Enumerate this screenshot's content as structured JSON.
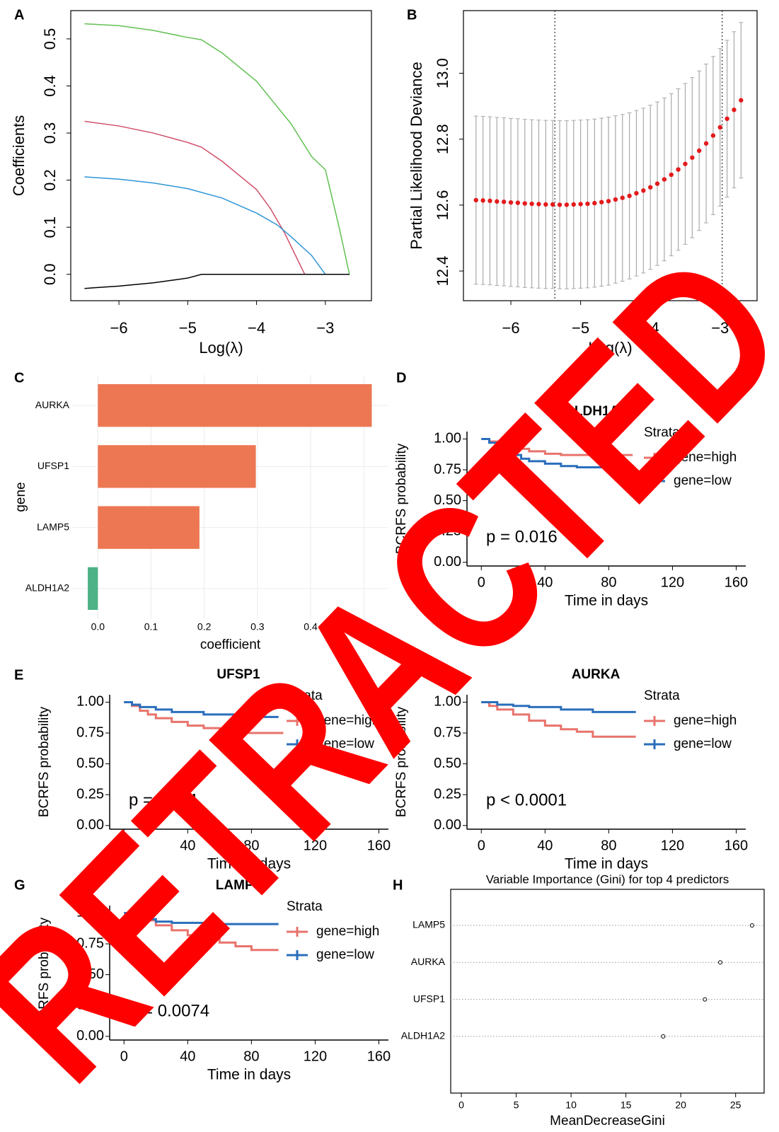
{
  "watermark": "RETRACTED",
  "chart_data": [
    {
      "type": "line",
      "panel": "A",
      "xlabel": "Log(λ)",
      "ylabel": "Coefficients",
      "xlim": [
        -6.7,
        -2.33
      ],
      "ylim": [
        -0.056,
        0.56
      ],
      "xticks": [
        {
          "value": -6,
          "label": "−6"
        },
        {
          "value": -5,
          "label": "−5"
        },
        {
          "value": -4,
          "label": "−4"
        },
        {
          "value": -3,
          "label": "−3"
        }
      ],
      "yticks": [
        {
          "value": 0,
          "label": "0.0"
        },
        0.1,
        0.2,
        0.3,
        0.4,
        0.5
      ],
      "series": [
        {
          "color": "#61c152",
          "x": [
            -6.5,
            -6,
            -5.5,
            -5,
            -4.8,
            -4.5,
            -4,
            -3.5,
            -3.2,
            -3,
            -2.8,
            -2.65
          ],
          "values": [
            0.532,
            0.528,
            0.518,
            0.503,
            0.498,
            0.47,
            0.41,
            0.32,
            0.25,
            0.222,
            0.1,
            0
          ]
        },
        {
          "color": "#d0506a",
          "x": [
            -6.5,
            -6,
            -5.5,
            -5,
            -4.8,
            -4.5,
            -4,
            -3.8,
            -3.6,
            -3.4,
            -3.3,
            -2.65
          ],
          "values": [
            0.325,
            0.315,
            0.3,
            0.28,
            0.27,
            0.24,
            0.18,
            0.14,
            0.09,
            0.03,
            0,
            0
          ]
        },
        {
          "color": "#2d96d6",
          "x": [
            -6.5,
            -6,
            -5.5,
            -5,
            -4.5,
            -4,
            -3.7,
            -3.5,
            -3.2,
            -3,
            -2.65
          ],
          "values": [
            0.207,
            0.202,
            0.194,
            0.182,
            0.162,
            0.13,
            0.105,
            0.08,
            0.04,
            0,
            0
          ]
        },
        {
          "color": "#000000",
          "x": [
            -6.5,
            -6,
            -5.5,
            -5,
            -4.8,
            -2.65
          ],
          "values": [
            -0.03,
            -0.025,
            -0.018,
            -0.008,
            0,
            0
          ]
        }
      ]
    },
    {
      "type": "errorbar",
      "panel": "B",
      "xlabel": "Log(λ)",
      "ylabel": "Partial Likelihood Deviance",
      "xlim": [
        -6.68,
        -2.47
      ],
      "ylim": [
        12.31,
        13.19
      ],
      "xticks": [
        {
          "value": -6,
          "label": "−6"
        },
        {
          "value": -5,
          "label": "−5"
        },
        {
          "value": -4,
          "label": "−4"
        },
        {
          "value": -3,
          "label": "−3"
        }
      ],
      "yticks": [
        12.4,
        12.6,
        12.8,
        {
          "value": 13,
          "label": "13.0"
        }
      ],
      "vlines": [
        -5.37,
        -2.97
      ],
      "error_color": "#a9a9a9",
      "x": [
        -6.5,
        -6.4,
        -6.3,
        -6.2,
        -6.1,
        -6.0,
        -5.9,
        -5.8,
        -5.7,
        -5.6,
        -5.5,
        -5.4,
        -5.3,
        -5.2,
        -5.1,
        -5.0,
        -4.9,
        -4.8,
        -4.7,
        -4.6,
        -4.5,
        -4.4,
        -4.3,
        -4.2,
        -4.1,
        -4.0,
        -3.9,
        -3.8,
        -3.7,
        -3.6,
        -3.5,
        -3.4,
        -3.3,
        -3.2,
        -3.1,
        -3.0,
        -2.9,
        -2.8,
        -2.7
      ],
      "series": [
        {
          "color": "#e41a1c",
          "values": [
            12.615,
            12.614,
            12.613,
            12.611,
            12.61,
            12.608,
            12.607,
            12.605,
            12.604,
            12.603,
            12.602,
            12.602,
            12.601,
            12.601,
            12.602,
            12.603,
            12.604,
            12.606,
            12.609,
            12.612,
            12.617,
            12.622,
            12.628,
            12.636,
            12.644,
            12.654,
            12.665,
            12.678,
            12.692,
            12.708,
            12.725,
            12.744,
            12.765,
            12.787,
            12.811,
            12.836,
            12.862,
            12.889,
            12.918
          ],
          "errors": [
            0.255,
            0.255,
            0.255,
            0.255,
            0.255,
            0.255,
            0.255,
            0.255,
            0.255,
            0.255,
            0.255,
            0.255,
            0.255,
            0.255,
            0.255,
            0.255,
            0.255,
            0.255,
            0.255,
            0.255,
            0.254,
            0.253,
            0.252,
            0.251,
            0.25,
            0.249,
            0.248,
            0.247,
            0.246,
            0.245,
            0.244,
            0.243,
            0.242,
            0.241,
            0.24,
            0.239,
            0.238,
            0.237,
            0.236
          ]
        }
      ]
    },
    {
      "type": "hbar",
      "panel": "C",
      "xlabel": "coefficient",
      "ylabel": "gene",
      "categories": [
        "AURKA",
        "UFSP1",
        "LAMP5",
        "ALDH1A2"
      ],
      "values": [
        0.515,
        0.297,
        0.191,
        -0.019
      ],
      "colors": [
        "#ec7752",
        "#ec7752",
        "#ec7752",
        "#4db386"
      ],
      "xlim": [
        -0.047,
        0.545
      ],
      "xticks": [
        {
          "value": 0,
          "label": "0.0"
        },
        0.1,
        0.2,
        0.3,
        0.4,
        0.5
      ],
      "grid": true
    },
    {
      "type": "step",
      "panel": "D",
      "title": "ALDH1A2",
      "xlabel": "Time in days",
      "ylabel": "BCRFS probability",
      "legend_title": "Strata",
      "annotation": "p = 0.016",
      "xlim": [
        -9,
        166
      ],
      "ylim": [
        -0.03,
        1.06
      ],
      "xticks": [
        0,
        40,
        80,
        120,
        160
      ],
      "yticks": [
        {
          "value": 0,
          "label": "0.00"
        },
        0.25,
        {
          "value": 0.5,
          "label": "0.50"
        },
        0.75,
        {
          "value": 1,
          "label": "1.00"
        }
      ],
      "series": [
        {
          "name": "gene=high",
          "color": "#e8736c",
          "x": [
            0,
            5,
            10,
            15,
            20,
            30,
            40,
            50,
            60,
            95
          ],
          "values": [
            1,
            0.98,
            0.96,
            0.94,
            0.92,
            0.9,
            0.88,
            0.87,
            0.87,
            0.87
          ]
        },
        {
          "name": "gene=low",
          "color": "#2a6ebb",
          "x": [
            0,
            5,
            10,
            15,
            20,
            25,
            30,
            40,
            50,
            60,
            95
          ],
          "values": [
            1,
            0.97,
            0.93,
            0.9,
            0.87,
            0.84,
            0.82,
            0.8,
            0.78,
            0.77,
            0.77
          ]
        }
      ]
    },
    {
      "type": "step",
      "panel": "E",
      "title": "UFSP1",
      "xlabel": "Time in days",
      "ylabel": "BCRFS probability",
      "legend_title": "Strata",
      "annotation": "p = 0.011",
      "xlim": [
        -9,
        166
      ],
      "ylim": [
        -0.03,
        1.06
      ],
      "xticks": [
        0,
        40,
        80,
        120,
        160
      ],
      "yticks": [
        {
          "value": 0,
          "label": "0.00"
        },
        0.25,
        {
          "value": 0.5,
          "label": "0.50"
        },
        0.75,
        {
          "value": 1,
          "label": "1.00"
        }
      ],
      "series": [
        {
          "name": "gene=high",
          "color": "#e8736c",
          "x": [
            0,
            5,
            10,
            15,
            20,
            30,
            40,
            50,
            60,
            70,
            100
          ],
          "values": [
            1,
            0.97,
            0.93,
            0.9,
            0.87,
            0.84,
            0.81,
            0.79,
            0.77,
            0.75,
            0.75
          ]
        },
        {
          "name": "gene=low",
          "color": "#2a6ebb",
          "x": [
            0,
            5,
            10,
            20,
            30,
            50,
            70,
            97
          ],
          "values": [
            1,
            0.98,
            0.96,
            0.94,
            0.92,
            0.9,
            0.88,
            0.88
          ]
        }
      ]
    },
    {
      "type": "step",
      "title": "AURKA",
      "xlabel": "Time in days",
      "ylabel": "BCRFS probability",
      "legend_title": "Strata",
      "annotation": "p < 0.0001",
      "xlim": [
        -9,
        166
      ],
      "ylim": [
        -0.03,
        1.06
      ],
      "xticks": [
        0,
        40,
        80,
        120,
        160
      ],
      "yticks": [
        {
          "value": 0,
          "label": "0.00"
        },
        0.25,
        {
          "value": 0.5,
          "label": "0.50"
        },
        0.75,
        {
          "value": 1,
          "label": "1.00"
        }
      ],
      "series": [
        {
          "name": "gene=high",
          "color": "#e8736c",
          "x": [
            0,
            5,
            10,
            20,
            30,
            40,
            50,
            60,
            70,
            97
          ],
          "values": [
            1,
            0.97,
            0.94,
            0.9,
            0.85,
            0.81,
            0.78,
            0.76,
            0.72,
            0.72
          ]
        },
        {
          "name": "gene=low",
          "color": "#2a6ebb",
          "x": [
            0,
            10,
            20,
            30,
            50,
            70,
            97
          ],
          "values": [
            1,
            0.98,
            0.97,
            0.96,
            0.94,
            0.92,
            0.92
          ]
        }
      ]
    },
    {
      "type": "step",
      "panel": "G",
      "title": "LAMP5",
      "xlabel": "Time in days",
      "ylabel": "BCRFS probability",
      "legend_title": "Strata",
      "annotation": "p = 0.0074",
      "xlim": [
        -9,
        166
      ],
      "ylim": [
        -0.03,
        1.06
      ],
      "xticks": [
        0,
        40,
        80,
        120,
        160
      ],
      "yticks": [
        {
          "value": 0,
          "label": "0.00"
        },
        0.25,
        {
          "value": 0.5,
          "label": "0.50"
        },
        0.75,
        {
          "value": 1,
          "label": "1.00"
        }
      ],
      "series": [
        {
          "name": "gene=high",
          "color": "#e8736c",
          "x": [
            0,
            5,
            10,
            20,
            30,
            40,
            50,
            60,
            70,
            80,
            97
          ],
          "values": [
            1,
            0.97,
            0.94,
            0.9,
            0.86,
            0.82,
            0.79,
            0.76,
            0.73,
            0.7,
            0.7
          ]
        },
        {
          "name": "gene=low",
          "color": "#2a6ebb",
          "x": [
            0,
            5,
            10,
            20,
            30,
            50,
            97
          ],
          "values": [
            1,
            0.97,
            0.95,
            0.93,
            0.92,
            0.91,
            0.91
          ]
        }
      ]
    },
    {
      "type": "dot",
      "panel": "H",
      "title": "Variable Importance (Gini) for top 4 predictors",
      "xlabel": "MeanDecreaseGini",
      "categories": [
        "LAMP5",
        "AURKA",
        "UFSP1",
        "ALDH1A2"
      ],
      "values": [
        26.5,
        23.6,
        22.2,
        18.4
      ],
      "xlim": [
        -0.97,
        27.6
      ],
      "xticks": [
        0,
        5,
        10,
        15,
        20,
        25
      ]
    }
  ]
}
